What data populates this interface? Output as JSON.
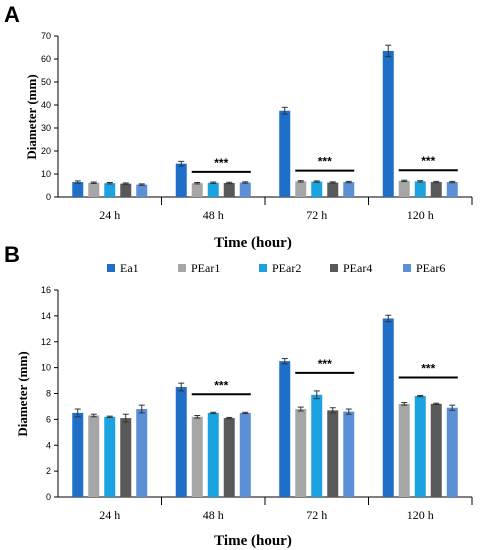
{
  "colors": {
    "Ea1": "#1f6fc9",
    "PEar1": "#a6a6a6",
    "PEar2": "#1aa3e0",
    "PEar4": "#595959",
    "PEar6": "#5b8fd6",
    "axis": "#000000",
    "errorbar": "#333333"
  },
  "chart_data": [
    {
      "panel": "A",
      "type": "bar",
      "title": "",
      "xlabel": "Time (hour)",
      "ylabel": "Diameter (mm)",
      "ylim": [
        0,
        70
      ],
      "yticks": [
        0,
        10,
        20,
        30,
        40,
        50,
        60,
        70
      ],
      "categories": [
        "24 h",
        "48 h",
        "72 h",
        "120 h"
      ],
      "series": [
        {
          "name": "Ea1",
          "values": [
            6.5,
            14.5,
            37.5,
            63.5
          ],
          "errors": [
            0.5,
            1.0,
            1.5,
            2.5
          ]
        },
        {
          "name": "PEar1",
          "values": [
            6.2,
            6.0,
            6.8,
            7.0
          ],
          "errors": [
            0.3,
            0.3,
            0.3,
            0.3
          ]
        },
        {
          "name": "PEar2",
          "values": [
            6.0,
            6.2,
            6.7,
            6.8
          ],
          "errors": [
            0.3,
            0.3,
            0.3,
            0.3
          ]
        },
        {
          "name": "PEar4",
          "values": [
            5.8,
            6.1,
            6.3,
            6.5
          ],
          "errors": [
            0.3,
            0.3,
            0.3,
            0.3
          ]
        },
        {
          "name": "PEar6",
          "values": [
            5.4,
            6.3,
            6.5,
            6.5
          ],
          "errors": [
            0.3,
            0.3,
            0.3,
            0.3
          ]
        }
      ],
      "significance": [
        {
          "category": "48 h",
          "label": "***"
        },
        {
          "category": "72 h",
          "label": "***"
        },
        {
          "category": "120 h",
          "label": "***"
        }
      ],
      "grid": false
    },
    {
      "panel": "B",
      "type": "bar",
      "title": "",
      "xlabel": "Time (hour)",
      "ylabel": "Diameter (mm)",
      "ylim": [
        0,
        16
      ],
      "yticks": [
        0,
        2,
        4,
        6,
        8,
        10,
        12,
        14,
        16
      ],
      "categories": [
        "24 h",
        "48 h",
        "72 h",
        "120 h"
      ],
      "legend": [
        "Ea1",
        "PEar1",
        "PEar2",
        "PEar4",
        "PEar6"
      ],
      "legend_position": "top",
      "series": [
        {
          "name": "Ea1",
          "values": [
            6.5,
            8.5,
            10.5,
            13.8
          ],
          "errors": [
            0.3,
            0.3,
            0.2,
            0.25
          ]
        },
        {
          "name": "PEar1",
          "values": [
            6.3,
            6.2,
            6.8,
            7.2
          ],
          "errors": [
            0.1,
            0.1,
            0.15,
            0.1
          ]
        },
        {
          "name": "PEar2",
          "values": [
            6.2,
            6.5,
            7.9,
            7.8
          ],
          "errors": [
            0.05,
            0.05,
            0.3,
            0.05
          ]
        },
        {
          "name": "PEar4",
          "values": [
            6.1,
            6.1,
            6.7,
            7.2
          ],
          "errors": [
            0.3,
            0.05,
            0.2,
            0.05
          ]
        },
        {
          "name": "PEar6",
          "values": [
            6.8,
            6.5,
            6.6,
            6.9
          ],
          "errors": [
            0.3,
            0.05,
            0.2,
            0.2
          ]
        }
      ],
      "significance": [
        {
          "category": "48 h",
          "label": "***"
        },
        {
          "category": "72 h",
          "label": "***"
        },
        {
          "category": "120 h",
          "label": "***"
        }
      ],
      "grid": false
    }
  ]
}
